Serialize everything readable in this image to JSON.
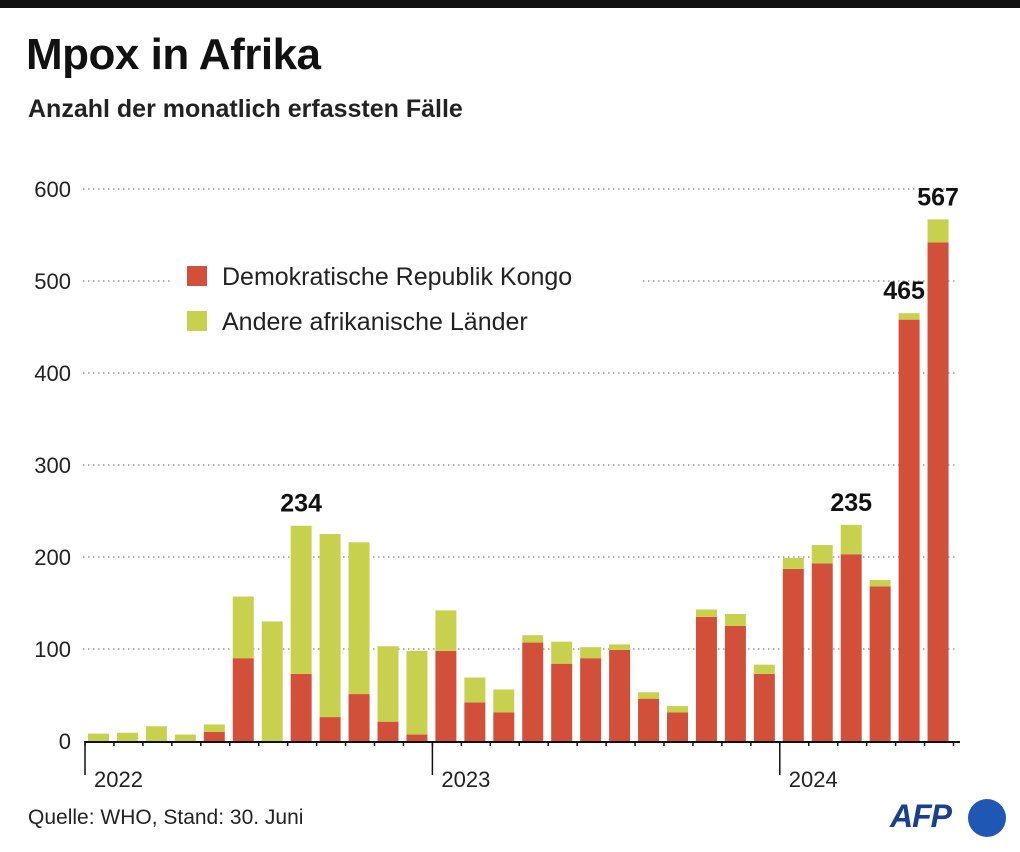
{
  "title": "Mpox in Afrika",
  "subtitle": "Anzahl der monatlich erfassten Fälle",
  "source": "Quelle: WHO, Stand: 30. Juni",
  "logo": "AFP",
  "colors": {
    "drc": "#d2503a",
    "other": "#c8d14e",
    "grid": "#999999",
    "axis": "#111111"
  },
  "chart_data": {
    "type": "bar",
    "stacked": true,
    "ylim": [
      0,
      600
    ],
    "yticks": [
      0,
      100,
      200,
      300,
      400,
      500,
      600
    ],
    "grid": true,
    "legend_position": "top-left",
    "year_labels": [
      {
        "label": "2022",
        "index": 0
      },
      {
        "label": "2023",
        "index": 12
      },
      {
        "label": "2024",
        "index": 24
      }
    ],
    "series": [
      {
        "name": "Demokratische Republik Kongo",
        "values": [
          0,
          0,
          0,
          0,
          10,
          90,
          0,
          73,
          26,
          51,
          21,
          7,
          98,
          42,
          31,
          107,
          84,
          90,
          99,
          46,
          31,
          135,
          125,
          73,
          187,
          193,
          203,
          168,
          458,
          542
        ]
      },
      {
        "name": "Andere afrikanische Länder",
        "values": [
          8,
          9,
          16,
          7,
          8,
          67,
          130,
          161,
          199,
          165,
          82,
          91,
          44,
          27,
          25,
          8,
          24,
          12,
          6,
          7,
          7,
          8,
          13,
          10,
          12,
          20,
          32,
          7,
          7,
          25
        ]
      }
    ],
    "annotations": [
      {
        "index": 7,
        "label": "234"
      },
      {
        "index": 26,
        "label": "235"
      },
      {
        "index": 28,
        "label": "465"
      },
      {
        "index": 29,
        "label": "567"
      }
    ]
  }
}
